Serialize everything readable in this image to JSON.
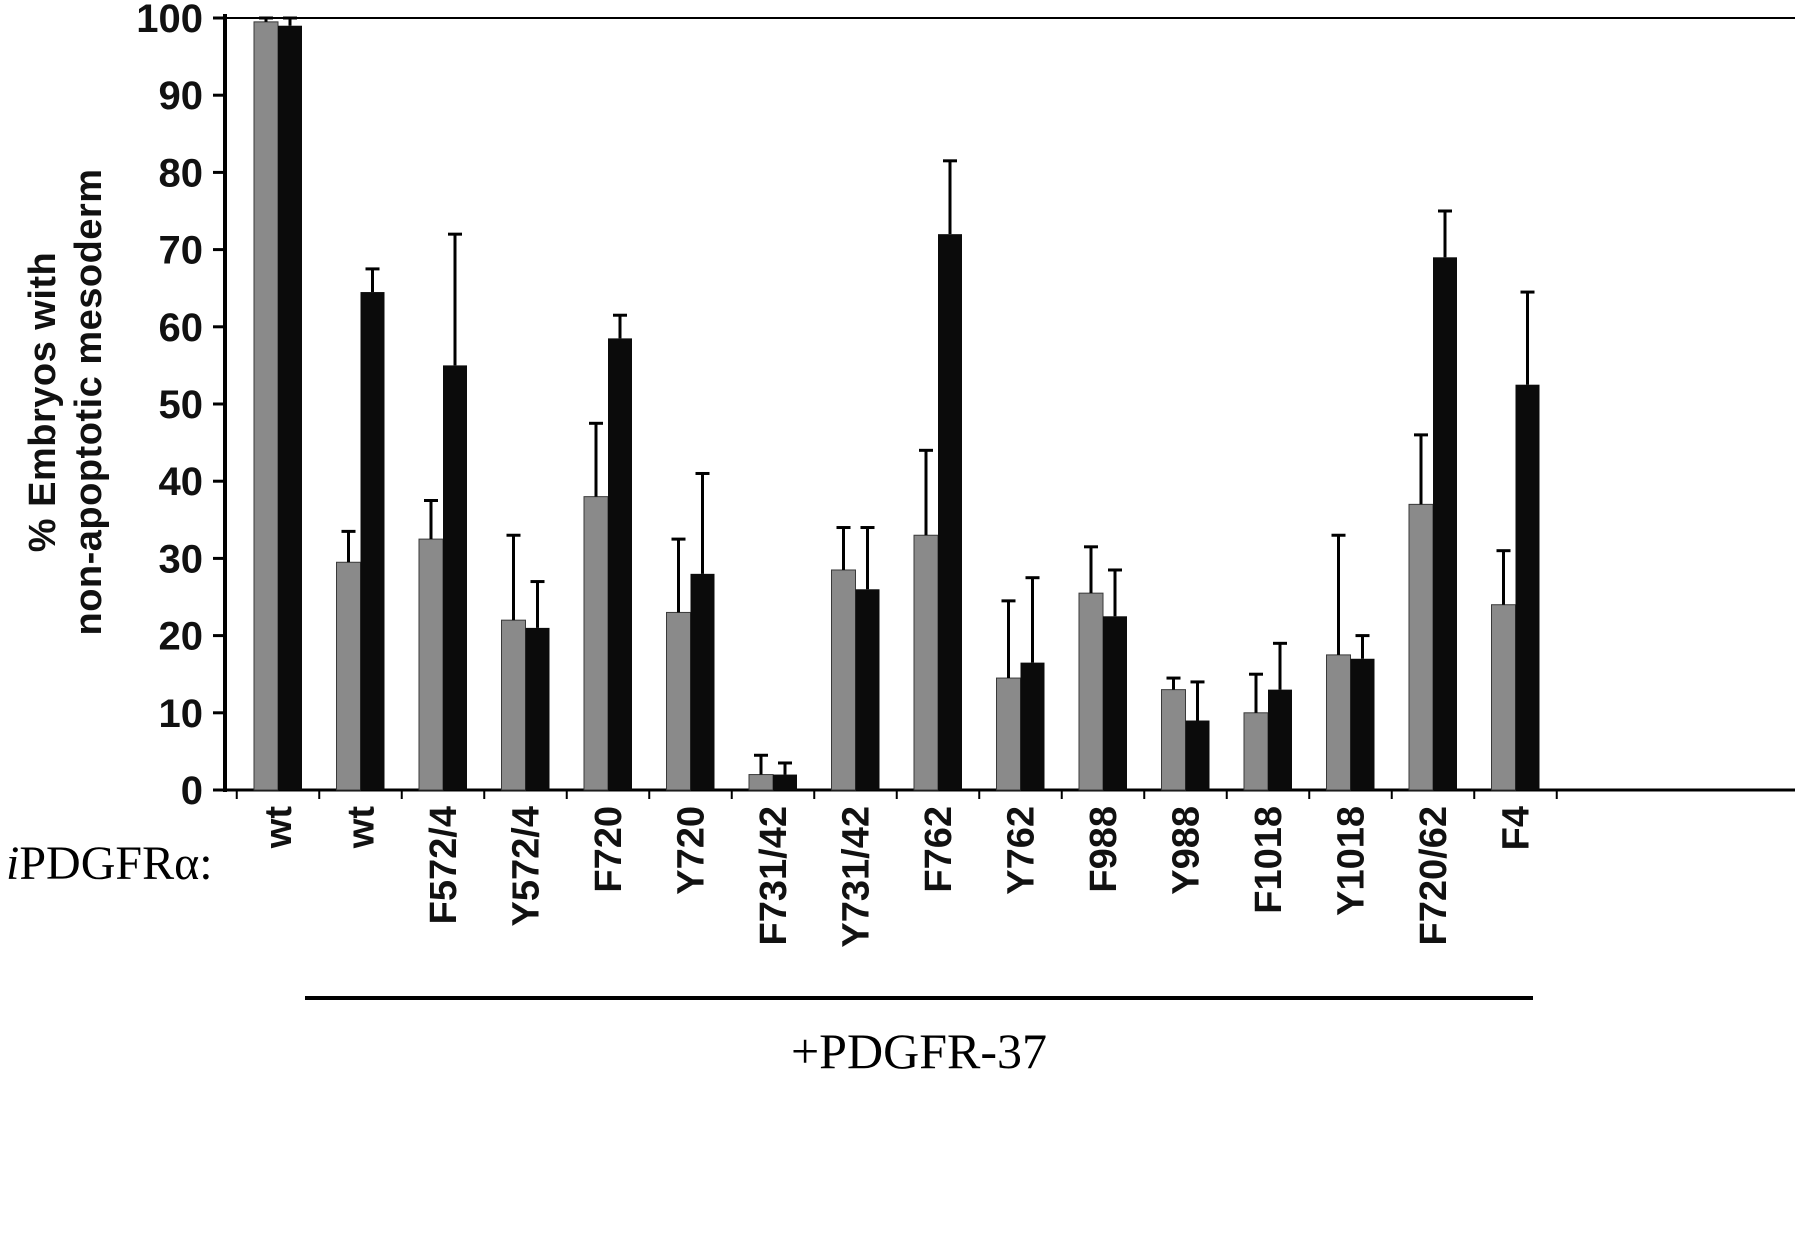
{
  "chart_data": {
    "type": "bar",
    "title": "",
    "ylabel_lines": [
      "% Embryos with",
      "non-apoptotic mesoderm"
    ],
    "ylim": [
      0,
      100
    ],
    "yticks": [
      0,
      10,
      20,
      30,
      40,
      50,
      60,
      70,
      80,
      90,
      100
    ],
    "grid": "off",
    "legend": "none",
    "categories": [
      "wt",
      "wt",
      "F572/4",
      "Y572/4",
      "F720",
      "Y720",
      "F731/42",
      "Y731/42",
      "F762",
      "Y762",
      "F988",
      "Y988",
      "F1018",
      "Y1018",
      "F720/62",
      "F4"
    ],
    "series": [
      {
        "name": "gray",
        "color": "#8a8a8a",
        "values": [
          99.5,
          29.5,
          32.5,
          22,
          38,
          23,
          2,
          28.5,
          33,
          14.5,
          25.5,
          13,
          10,
          17.5,
          37,
          24
        ],
        "errors": [
          0.5,
          4,
          5,
          11,
          9.5,
          9.5,
          2.5,
          5.5,
          11,
          10,
          6,
          1.5,
          5,
          15.5,
          9,
          7
        ]
      },
      {
        "name": "black",
        "color": "#0b0b0b",
        "values": [
          99,
          64.5,
          55,
          21,
          58.5,
          28,
          2,
          26,
          72,
          16.5,
          22.5,
          9,
          13,
          17,
          69,
          52.5
        ],
        "errors": [
          1,
          3,
          17,
          6,
          3,
          13,
          1.5,
          8,
          9.5,
          11,
          6,
          5,
          6,
          3,
          6,
          12
        ]
      }
    ],
    "axis_prefix": {
      "italic": "i",
      "label": "PDGFRα:"
    },
    "group_annotation": {
      "label": "+PDGFR-37",
      "start_category_index": 1,
      "end_category_index": 15
    }
  }
}
